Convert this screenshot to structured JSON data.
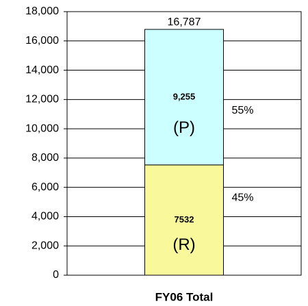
{
  "chart_data": {
    "type": "stacked_bar",
    "categories": [
      "FY06 Total"
    ],
    "series": [
      {
        "name": "(R)",
        "color": "#f9f99c",
        "values": [
          7532
        ],
        "value_labels": [
          "7532"
        ],
        "share": {
          "value": 45,
          "label": "45%"
        }
      },
      {
        "name": "(P)",
        "color": "#ccffff",
        "values": [
          9255
        ],
        "value_labels": [
          "9,255"
        ],
        "share": {
          "value": 55,
          "label": "55%"
        }
      }
    ],
    "total": {
      "value": 16787,
      "label": "16,787"
    },
    "ylim": [
      0,
      18000
    ],
    "yticks": [
      0,
      {
        "value": 2000,
        "label": "2,000"
      },
      {
        "value": 4000,
        "label": "4,000"
      },
      {
        "value": 6000,
        "label": "6,000"
      },
      {
        "value": 8000,
        "label": "8,000"
      },
      {
        "value": 10000,
        "label": "10,000"
      },
      {
        "value": 12000,
        "label": "12,000"
      },
      {
        "value": 14000,
        "label": "14,000"
      },
      {
        "value": 16000,
        "label": "16,000"
      },
      {
        "value": 18000,
        "label": "18,000"
      }
    ],
    "grid": true
  }
}
